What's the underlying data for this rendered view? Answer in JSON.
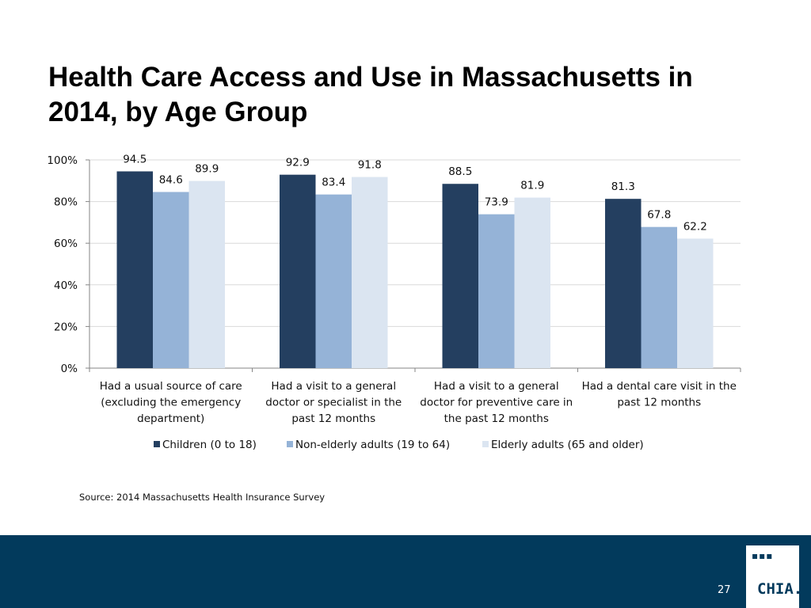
{
  "slide": {
    "title": "Health Care Access and Use in Massachusetts in 2014, by Age Group",
    "source": "Source:  2014 Massachusetts Health Insurance Survey",
    "page_number": "27",
    "logo": {
      "dots": "▪▪▪",
      "text": "CHIA."
    }
  },
  "colors": {
    "footer": "#023a5c",
    "children": "#243f60",
    "non_elderly": "#95b3d7",
    "elderly": "#dbe5f1"
  },
  "chart_data": {
    "type": "bar",
    "title": "",
    "xlabel": "",
    "ylabel": "",
    "ylim": [
      0,
      100
    ],
    "y_ticks": [
      0,
      20,
      40,
      60,
      80,
      100
    ],
    "y_tick_labels": [
      "0%",
      "20%",
      "40%",
      "60%",
      "80%",
      "100%"
    ],
    "grid": true,
    "legend_position": "bottom",
    "categories": [
      [
        "Had a usual source of care",
        "(excluding the emergency",
        "department)"
      ],
      [
        "Had a visit to a general",
        "doctor or specialist in the",
        "past 12 months"
      ],
      [
        "Had a visit to a general",
        "doctor for preventive care in",
        "the past 12 months"
      ],
      [
        "Had a dental care visit in the",
        "past 12 months"
      ]
    ],
    "series": [
      {
        "name": "Children (0 to 18)",
        "color": "#243f60",
        "values": [
          94.5,
          92.9,
          88.5,
          81.3
        ],
        "labels": [
          "94.5",
          "92.9",
          "88.5",
          "81.3"
        ]
      },
      {
        "name": "Non-elderly adults (19 to 64)",
        "color": "#95b3d7",
        "values": [
          84.6,
          83.4,
          73.9,
          67.8
        ],
        "labels": [
          "84.6",
          "83.4",
          "73.9",
          "67.8"
        ]
      },
      {
        "name": "Elderly adults (65 and older)",
        "color": "#dbe5f1",
        "values": [
          89.9,
          91.8,
          81.9,
          62.2
        ],
        "labels": [
          "89.9",
          "91.8",
          "81.9",
          "62.2"
        ]
      }
    ]
  }
}
